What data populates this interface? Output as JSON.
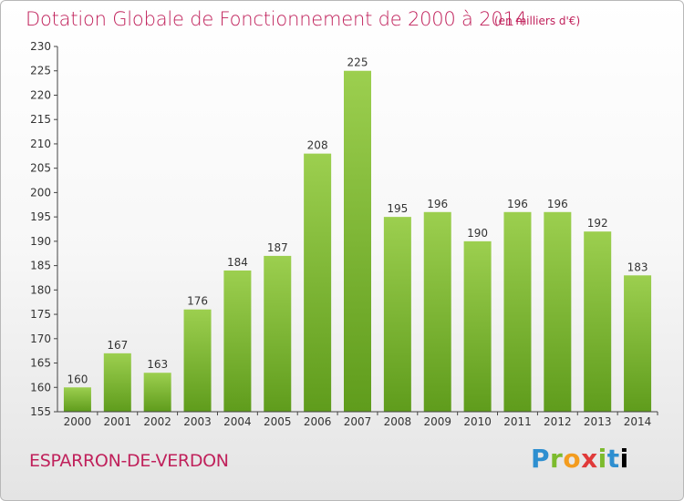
{
  "title": "Dotation Globale de Fonctionnement de 2000 à 2014",
  "title_unit": "(en milliers d'€)",
  "city": "ESPARRON-DE-VERDON",
  "logo": {
    "text": "Proxiti",
    "letters": [
      "P",
      "r",
      "o",
      "x",
      "i",
      "t",
      "i"
    ]
  },
  "colors": {
    "title": "#c0215b",
    "bar_top": "#9ccf4f",
    "bar_bottom": "#5f9c1c"
  },
  "chart_data": {
    "type": "bar",
    "title": "Dotation Globale de Fonctionnement de 2000 à 2014",
    "subtitle": "(en milliers d'€)",
    "categories": [
      "2000",
      "2001",
      "2002",
      "2003",
      "2004",
      "2005",
      "2006",
      "2007",
      "2008",
      "2009",
      "2010",
      "2011",
      "2012",
      "2013",
      "2014"
    ],
    "values": [
      160,
      167,
      163,
      176,
      184,
      187,
      208,
      225,
      195,
      196,
      190,
      196,
      196,
      192,
      183
    ],
    "ylim": [
      155,
      230
    ],
    "yticks": [
      155,
      160,
      165,
      170,
      175,
      180,
      185,
      190,
      195,
      200,
      205,
      210,
      215,
      220,
      225,
      230
    ],
    "xlabel": "",
    "ylabel": "",
    "grid": false,
    "legend": "none"
  }
}
